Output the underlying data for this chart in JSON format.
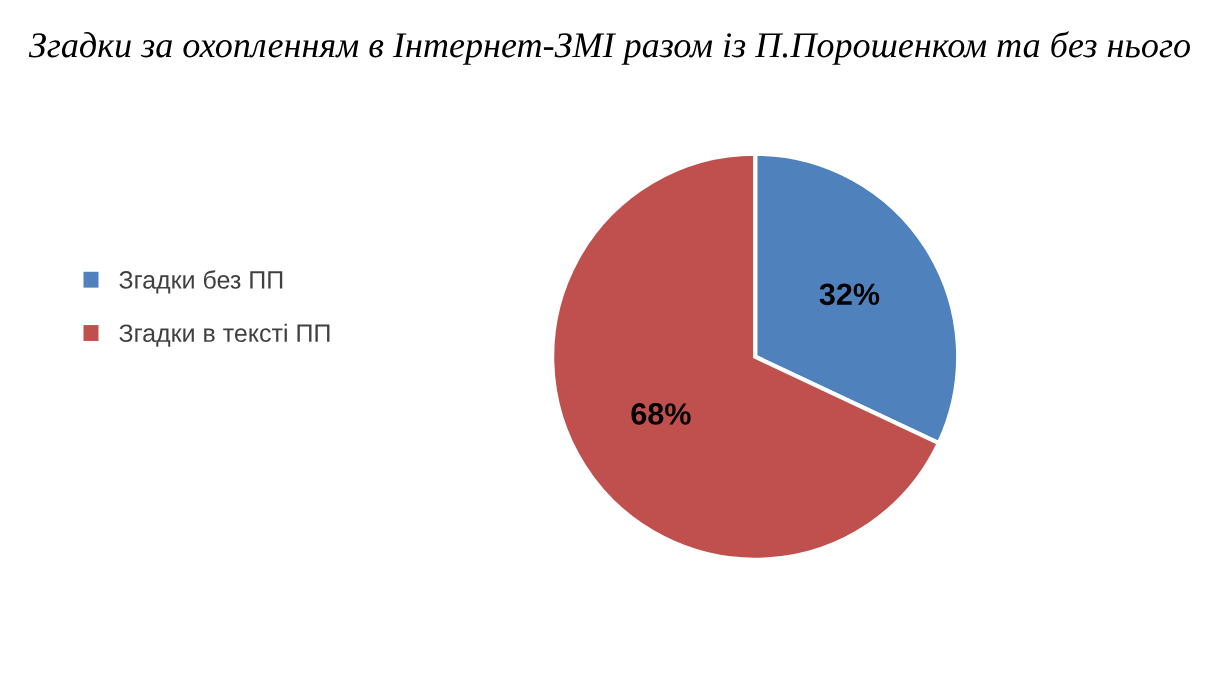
{
  "chart_data": {
    "type": "pie",
    "title": "Згадки за охопленням в Інтернет-ЗМІ разом із П.Порошенком та без нього",
    "categories": [
      "Згадки без ПП",
      "Згадки в тексті ПП"
    ],
    "values": [
      32,
      68
    ],
    "colors": [
      "#4f81bd",
      "#c0504d"
    ],
    "value_labels": [
      "32%",
      "68%"
    ],
    "legend": "left"
  }
}
